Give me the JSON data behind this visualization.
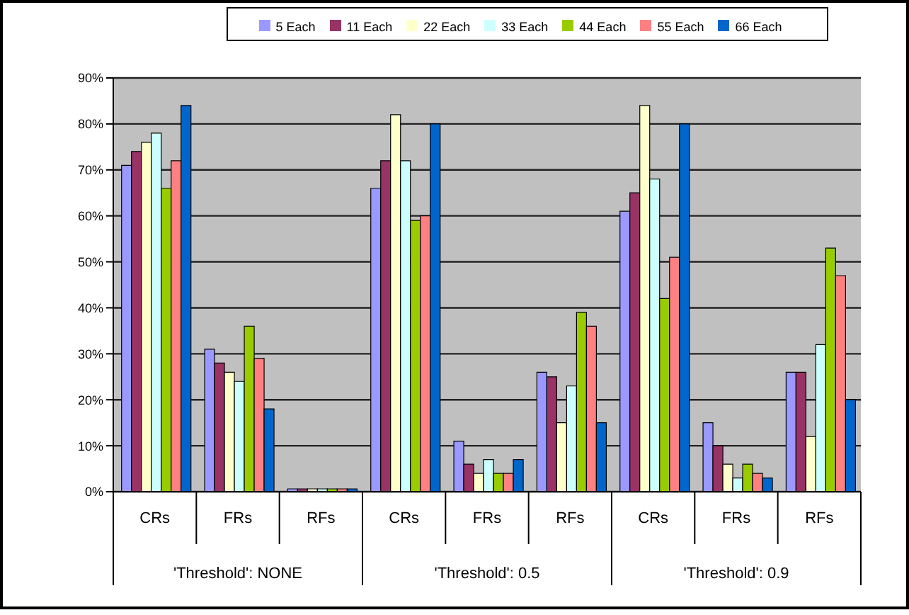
{
  "chart_data": {
    "type": "bar",
    "categories": [
      "CRs",
      "FRs",
      "RFs",
      "CRs",
      "FRs",
      "RFs",
      "CRs",
      "FRs",
      "RFs"
    ],
    "series": [
      {
        "name": "5 Each",
        "color": "#9999ff",
        "values": [
          71,
          31,
          0,
          66,
          11,
          26,
          61,
          15,
          26
        ]
      },
      {
        "name": "11 Each",
        "color": "#993366",
        "values": [
          74,
          28,
          0,
          72,
          6,
          25,
          65,
          10,
          26
        ]
      },
      {
        "name": "22 Each",
        "color": "#ffffcc",
        "values": [
          76,
          26,
          0,
          82,
          4,
          15,
          84,
          6,
          12
        ]
      },
      {
        "name": "33 Each",
        "color": "#ccffff",
        "values": [
          78,
          24,
          0,
          72,
          7,
          23,
          68,
          3,
          32
        ]
      },
      {
        "name": "44 Each",
        "color": "#99cc00",
        "values": [
          66,
          36,
          0,
          59,
          4,
          39,
          42,
          6,
          53
        ]
      },
      {
        "name": "55 Each",
        "color": "#ff8080",
        "values": [
          72,
          29,
          0,
          60,
          4,
          36,
          51,
          4,
          47
        ]
      },
      {
        "name": "66 Each",
        "color": "#0066cc",
        "values": [
          84,
          18,
          0,
          80,
          7,
          15,
          80,
          3,
          20
        ]
      }
    ],
    "ylim": [
      0,
      90
    ],
    "yticks": [
      {
        "value": 0,
        "label": "0%"
      },
      {
        "value": 10,
        "label": "10%"
      },
      {
        "value": 20,
        "label": "20%"
      },
      {
        "value": 30,
        "label": "30%"
      },
      {
        "value": 40,
        "label": "40%"
      },
      {
        "value": 50,
        "label": "50%"
      },
      {
        "value": 60,
        "label": "60%"
      },
      {
        "value": 70,
        "label": "70%"
      },
      {
        "value": 80,
        "label": "80%"
      },
      {
        "value": 90,
        "label": "90%"
      }
    ],
    "grid": "y",
    "legend": "top",
    "annotations": [
      "'Threshold': NONE",
      "'Threshold': 0.5",
      "'Threshold': 0.9"
    ]
  }
}
